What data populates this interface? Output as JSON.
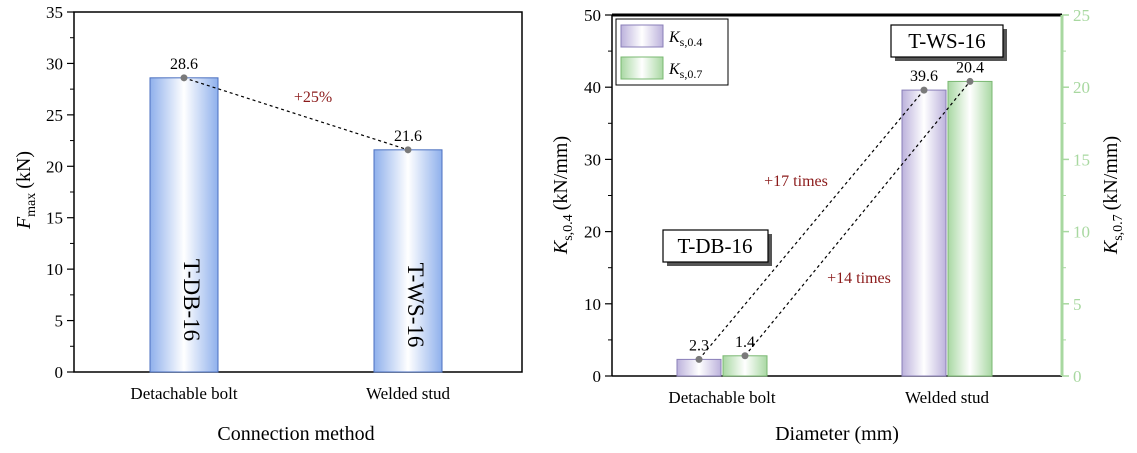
{
  "chart_data": [
    {
      "type": "bar",
      "categories": [
        "Detachable bolt",
        "Welded stud"
      ],
      "values": [
        28.6,
        21.6
      ],
      "value_labels": [
        "28.6",
        "21.6"
      ],
      "bar_labels": [
        "T-DB-16",
        "T-WS-16"
      ],
      "xlabel": "Connection method",
      "ylabel_main": "F",
      "ylabel_sub": "max",
      "ylabel_unit": "(kN)",
      "ylim": [
        0,
        35
      ],
      "yticks": [
        "0",
        "5",
        "10",
        "15",
        "20",
        "25",
        "30",
        "35"
      ],
      "annotation": "+25%",
      "bar_color": "#b6cdf4",
      "grid": false
    },
    {
      "type": "bar",
      "categories": [
        "Detachable bolt",
        "Welded stud"
      ],
      "xlabel": "Diameter (mm)",
      "ylabel_left_main": "K",
      "ylabel_left_sub": "s,0.4",
      "ylabel_left_unit": "(kN/mm)",
      "ylabel_right_main": "K",
      "ylabel_right_sub": "s,0.7",
      "ylabel_right_unit": "(kN/mm)",
      "ylim_left": [
        0,
        50
      ],
      "ylim_right": [
        0,
        25
      ],
      "yticks_left": [
        "0",
        "10",
        "20",
        "30",
        "40",
        "50"
      ],
      "yticks_right": [
        "0",
        "5",
        "10",
        "15",
        "20",
        "25"
      ],
      "series": [
        {
          "name_main": "K",
          "name_sub": "s,0.4",
          "axis": "left",
          "values": [
            2.3,
            39.6
          ],
          "value_labels": [
            "2.3",
            "39.6"
          ],
          "color": "#d3cce8"
        },
        {
          "name_main": "K",
          "name_sub": "s,0.7",
          "axis": "right",
          "values": [
            1.4,
            20.4
          ],
          "value_labels": [
            "1.4",
            "20.4"
          ],
          "color": "#c7e6c4"
        }
      ],
      "annotations": [
        "+17 times",
        "+14 times"
      ],
      "boxed_labels": [
        "T-DB-16",
        "T-WS-16"
      ],
      "left_axis_color": "#000000",
      "right_axis_color": "#a8d8a0",
      "legend_position": "top-left",
      "grid": false
    }
  ]
}
